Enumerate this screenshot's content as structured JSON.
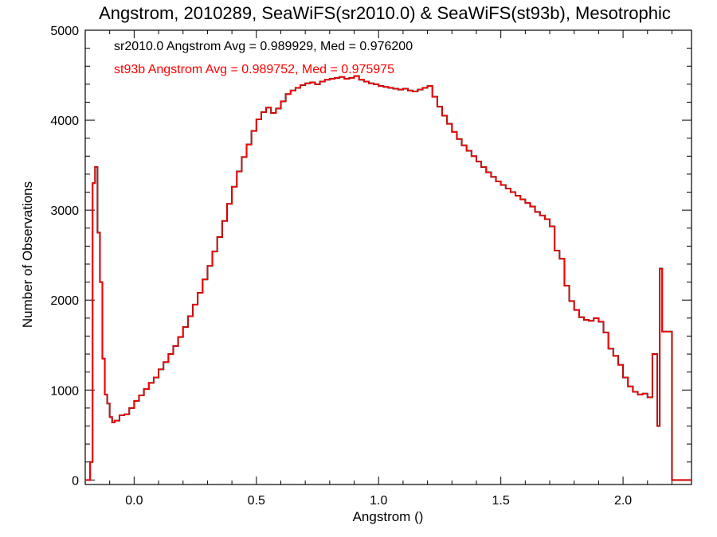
{
  "chart_data": {
    "type": "line",
    "title": "Angstrom, 2010289, SeaWiFS(sr2010.0) & SeaWiFS(st93b), Mesotrophic",
    "xlabel": "Angstrom ()",
    "ylabel": "Number of Observations",
    "xlim": [
      -0.2,
      2.28
    ],
    "ylim": [
      -50,
      5000
    ],
    "x_ticks": [
      0.0,
      0.5,
      1.0,
      1.5,
      2.0
    ],
    "x_tick_labels": [
      "0.0",
      "0.5",
      "1.0",
      "1.5",
      "2.0"
    ],
    "y_ticks": [
      0,
      1000,
      2000,
      3000,
      4000,
      5000
    ],
    "y_tick_labels": [
      "0",
      "1000",
      "2000",
      "3000",
      "4000",
      "5000"
    ],
    "step": "histogram",
    "annotations": [
      {
        "text": "sr2010.0 Angstrom Avg = 0.989929, Med = 0.976200",
        "color": "#000000"
      },
      {
        "text": "st93b Angstrom Avg = 0.989752, Med = 0.975975",
        "color": "#ff0000"
      }
    ],
    "series": [
      {
        "color": "#000000",
        "x": [
          -0.2,
          -0.18,
          -0.17,
          -0.16,
          -0.15,
          -0.14,
          -0.13,
          -0.12,
          -0.11,
          -0.1,
          -0.09,
          -0.08,
          -0.06,
          -0.04,
          -0.02,
          0.0,
          0.02,
          0.04,
          0.06,
          0.08,
          0.1,
          0.12,
          0.14,
          0.16,
          0.18,
          0.2,
          0.22,
          0.24,
          0.26,
          0.28,
          0.3,
          0.32,
          0.34,
          0.36,
          0.38,
          0.4,
          0.42,
          0.44,
          0.46,
          0.48,
          0.5,
          0.52,
          0.54,
          0.56,
          0.58,
          0.6,
          0.62,
          0.64,
          0.66,
          0.68,
          0.7,
          0.72,
          0.74,
          0.76,
          0.78,
          0.8,
          0.82,
          0.84,
          0.86,
          0.88,
          0.9,
          0.92,
          0.94,
          0.96,
          0.98,
          1.0,
          1.02,
          1.04,
          1.06,
          1.08,
          1.1,
          1.12,
          1.14,
          1.16,
          1.18,
          1.2,
          1.22,
          1.24,
          1.26,
          1.28,
          1.3,
          1.32,
          1.34,
          1.36,
          1.38,
          1.4,
          1.42,
          1.44,
          1.46,
          1.48,
          1.5,
          1.52,
          1.54,
          1.56,
          1.58,
          1.6,
          1.62,
          1.64,
          1.66,
          1.68,
          1.7,
          1.72,
          1.74,
          1.76,
          1.78,
          1.8,
          1.82,
          1.84,
          1.86,
          1.88,
          1.9,
          1.92,
          1.94,
          1.96,
          1.98,
          2.0,
          2.02,
          2.04,
          2.06,
          2.08,
          2.1,
          2.12,
          2.14,
          2.15,
          2.16,
          2.2,
          2.28
        ],
        "values": [
          0,
          200,
          3300,
          3480,
          2750,
          2200,
          1350,
          950,
          850,
          700,
          640,
          660,
          720,
          730,
          800,
          880,
          940,
          1010,
          1080,
          1140,
          1230,
          1310,
          1400,
          1490,
          1590,
          1700,
          1820,
          1950,
          2080,
          2230,
          2380,
          2540,
          2700,
          2880,
          3070,
          3260,
          3430,
          3590,
          3730,
          3880,
          4010,
          4090,
          4140,
          4080,
          4130,
          4210,
          4290,
          4330,
          4360,
          4390,
          4410,
          4420,
          4400,
          4430,
          4450,
          4460,
          4470,
          4480,
          4460,
          4470,
          4490,
          4450,
          4430,
          4410,
          4400,
          4380,
          4370,
          4360,
          4350,
          4340,
          4350,
          4330,
          4320,
          4340,
          4360,
          4380,
          4260,
          4150,
          4050,
          3960,
          3870,
          3790,
          3720,
          3660,
          3600,
          3540,
          3480,
          3420,
          3370,
          3320,
          3280,
          3240,
          3200,
          3160,
          3120,
          3080,
          3040,
          2980,
          2940,
          2900,
          2820,
          2550,
          2460,
          2160,
          1990,
          1890,
          1810,
          1780,
          1770,
          1800,
          1760,
          1640,
          1460,
          1380,
          1280,
          1140,
          1040,
          980,
          950,
          960,
          920,
          1400,
          600,
          2350,
          1650,
          0,
          0
        ]
      },
      {
        "color": "#ff0000",
        "x": [
          -0.2,
          -0.18,
          -0.17,
          -0.16,
          -0.15,
          -0.14,
          -0.13,
          -0.12,
          -0.11,
          -0.1,
          -0.09,
          -0.08,
          -0.06,
          -0.04,
          -0.02,
          0.0,
          0.02,
          0.04,
          0.06,
          0.08,
          0.1,
          0.12,
          0.14,
          0.16,
          0.18,
          0.2,
          0.22,
          0.24,
          0.26,
          0.28,
          0.3,
          0.32,
          0.34,
          0.36,
          0.38,
          0.4,
          0.42,
          0.44,
          0.46,
          0.48,
          0.5,
          0.52,
          0.54,
          0.56,
          0.58,
          0.6,
          0.62,
          0.64,
          0.66,
          0.68,
          0.7,
          0.72,
          0.74,
          0.76,
          0.78,
          0.8,
          0.82,
          0.84,
          0.86,
          0.88,
          0.9,
          0.92,
          0.94,
          0.96,
          0.98,
          1.0,
          1.02,
          1.04,
          1.06,
          1.08,
          1.1,
          1.12,
          1.14,
          1.16,
          1.18,
          1.2,
          1.22,
          1.24,
          1.26,
          1.28,
          1.3,
          1.32,
          1.34,
          1.36,
          1.38,
          1.4,
          1.42,
          1.44,
          1.46,
          1.48,
          1.5,
          1.52,
          1.54,
          1.56,
          1.58,
          1.6,
          1.62,
          1.64,
          1.66,
          1.68,
          1.7,
          1.72,
          1.74,
          1.76,
          1.78,
          1.8,
          1.82,
          1.84,
          1.86,
          1.88,
          1.9,
          1.92,
          1.94,
          1.96,
          1.98,
          2.0,
          2.02,
          2.04,
          2.06,
          2.08,
          2.1,
          2.12,
          2.14,
          2.15,
          2.16,
          2.2,
          2.28
        ],
        "values": [
          0,
          200,
          3300,
          3480,
          2750,
          2200,
          1350,
          950,
          850,
          700,
          640,
          660,
          720,
          730,
          800,
          880,
          940,
          1010,
          1080,
          1140,
          1230,
          1310,
          1400,
          1490,
          1590,
          1700,
          1820,
          1950,
          2080,
          2230,
          2380,
          2540,
          2700,
          2880,
          3070,
          3260,
          3430,
          3590,
          3730,
          3880,
          4010,
          4090,
          4140,
          4080,
          4130,
          4210,
          4290,
          4330,
          4360,
          4390,
          4410,
          4420,
          4400,
          4430,
          4450,
          4460,
          4470,
          4480,
          4460,
          4470,
          4490,
          4450,
          4430,
          4410,
          4400,
          4380,
          4370,
          4360,
          4350,
          4340,
          4350,
          4330,
          4320,
          4340,
          4360,
          4380,
          4260,
          4150,
          4050,
          3960,
          3870,
          3790,
          3720,
          3660,
          3600,
          3540,
          3480,
          3420,
          3370,
          3320,
          3280,
          3240,
          3200,
          3160,
          3120,
          3080,
          3040,
          2980,
          2940,
          2900,
          2820,
          2550,
          2460,
          2160,
          1990,
          1890,
          1810,
          1780,
          1770,
          1800,
          1760,
          1640,
          1460,
          1380,
          1280,
          1140,
          1040,
          980,
          950,
          960,
          920,
          1400,
          600,
          2350,
          1650,
          0,
          0
        ]
      }
    ]
  }
}
